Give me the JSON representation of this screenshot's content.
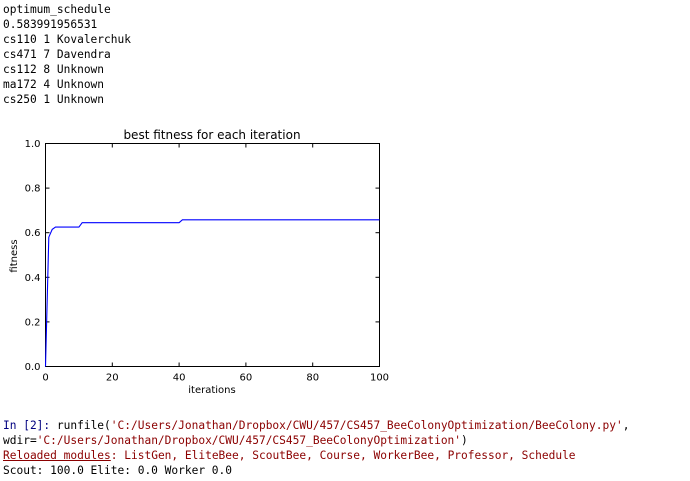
{
  "output": {
    "lines": [
      "optimum_schedule",
      "0.583991956531",
      "cs110 1 Kovalerchuk",
      "cs471 7 Davendra",
      "cs112 8 Unknown",
      "ma172 4 Unknown",
      "cs250 1 Unknown"
    ]
  },
  "chart_data": {
    "type": "line",
    "title": "best fitness for each iteration",
    "xlabel": "iterations",
    "ylabel": "fitness",
    "xlim": [
      0,
      100
    ],
    "ylim": [
      0.0,
      1.0
    ],
    "xticks": [
      "0",
      "20",
      "40",
      "60",
      "80",
      "100"
    ],
    "yticks": [
      "0.0",
      "0.2",
      "0.4",
      "0.6",
      "0.8",
      "1.0"
    ],
    "grid": false,
    "line_color": "#0000ff",
    "series": [
      {
        "x": [
          0,
          1,
          2,
          3,
          10,
          11,
          40,
          41,
          100
        ],
        "y": [
          0.0,
          0.58,
          0.615,
          0.625,
          0.625,
          0.645,
          0.645,
          0.658,
          0.658
        ]
      }
    ]
  },
  "console": {
    "prompt": "In [2]:",
    "cmd_runfile": " runfile(",
    "path1": "'C:/Users/Jonathan/Dropbox/CWU/457/CS457_BeeColonyOptimization/BeeColony.py'",
    "sep": ",",
    "wdir_label": "wdir=",
    "path2": "'C:/Users/Jonathan/Dropbox/CWU/457/CS457_BeeColonyOptimization'",
    "close": ")",
    "reloaded_label": "Reloaded modules",
    "reloaded_colon": ": ",
    "modules": "ListGen, EliteBee, ScoutBee, Course, WorkerBee, Professor, Schedule",
    "status": "Scout: 100.0 Elite: 0.0 Worker 0.0"
  }
}
